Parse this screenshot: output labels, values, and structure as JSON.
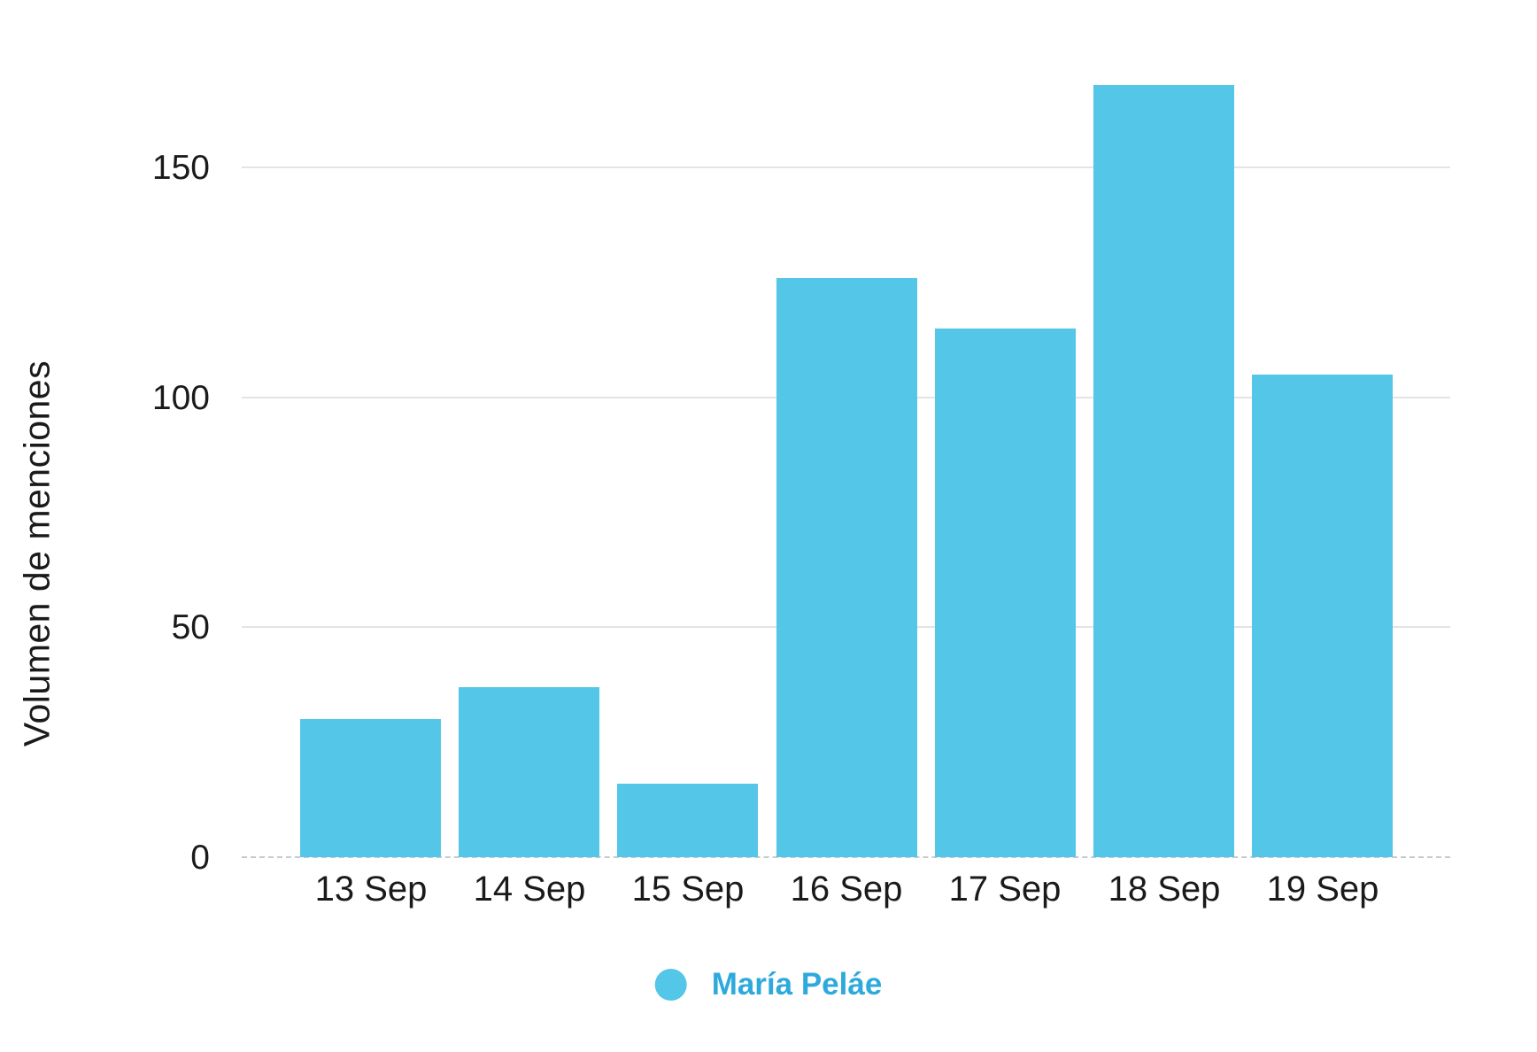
{
  "chart_data": {
    "type": "bar",
    "title": "",
    "xlabel": "",
    "ylabel": "Volumen de menciones",
    "categories": [
      "13 Sep",
      "14 Sep",
      "15 Sep",
      "16 Sep",
      "17 Sep",
      "18 Sep",
      "19 Sep"
    ],
    "series": [
      {
        "name": "María Peláe",
        "values": [
          30,
          37,
          16,
          126,
          115,
          168,
          105
        ]
      }
    ],
    "yticks": [
      0,
      50,
      100,
      150
    ],
    "ylim": [
      0,
      175
    ],
    "grid": true,
    "legend_position": "bottom",
    "colors": {
      "bar": "#54C6E8",
      "legend_dot": "#54C6E8",
      "legend_text": "#2EA9DC",
      "axis_text": "#1A1A1A",
      "gridline": "#E4E4E4",
      "zero_line": "#C9C9C9",
      "background": "#FFFFFF"
    }
  }
}
